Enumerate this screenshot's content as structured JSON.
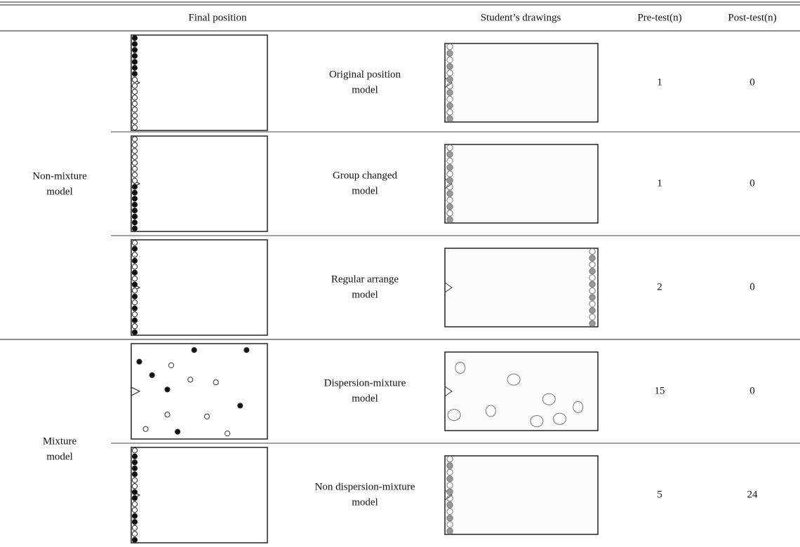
{
  "header": {
    "final_position": "Final position",
    "students_drawings": "Student’s drawings",
    "pre_test": "Pre-test(n)",
    "post_test": "Post-test(n)"
  },
  "groups": [
    {
      "label": [
        "Non-mixture",
        "model"
      ]
    },
    {
      "label": [
        "Mixture",
        "model"
      ]
    }
  ],
  "rows": [
    {
      "model": [
        "Original position",
        "model"
      ],
      "pre": 1,
      "post": 0
    },
    {
      "model": [
        "Group changed",
        "model"
      ],
      "pre": 1,
      "post": 0
    },
    {
      "model": [
        "Regular arrange",
        "model"
      ],
      "pre": 2,
      "post": 0
    },
    {
      "model": [
        "Dispersion-mixture",
        "model"
      ],
      "pre": 15,
      "post": 0
    },
    {
      "model": [
        "Non dispersion-mixture",
        "model"
      ],
      "pre": 5,
      "post": 24
    }
  ]
}
